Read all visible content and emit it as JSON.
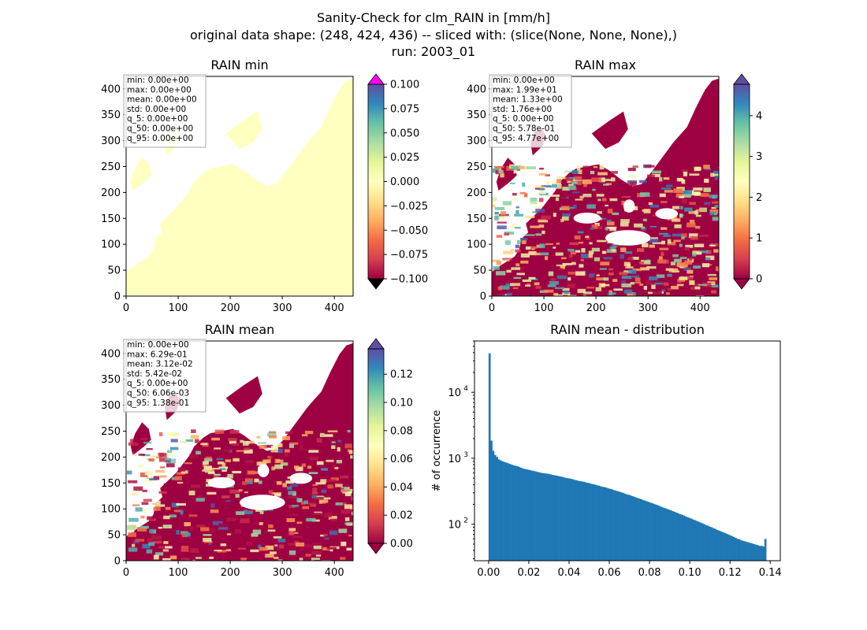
{
  "figure": {
    "suptitle_lines": [
      "Sanity-Check for clm_RAIN in [mm/h]",
      "original data shape: (248, 424, 436) -- sliced with: (slice(None, None, None),)",
      "run: 2003_01"
    ]
  },
  "colors": {
    "cmap": [
      "#9e0142",
      "#d53e4f",
      "#f46d43",
      "#fdae61",
      "#fee08b",
      "#ffffbf",
      "#e6f598",
      "#abdda4",
      "#66c2a5",
      "#3288bd",
      "#5e4fa2"
    ],
    "over_min_panel": "#ff00ff",
    "under_min_panel": "#000000",
    "hist_bar": "#1f77b4",
    "background": "#ffffff",
    "stats_border": "#aaaaaa"
  },
  "chart_data": [
    {
      "type": "heatmap",
      "title": "RAIN min",
      "x_ticks": [
        0,
        100,
        200,
        300,
        400
      ],
      "y_ticks": [
        0,
        50,
        100,
        150,
        200,
        250,
        300,
        350,
        400
      ],
      "xlim": [
        0,
        436
      ],
      "ylim": [
        0,
        424
      ],
      "colorbar_ticks": [
        "0.100",
        "0.075",
        "0.050",
        "0.025",
        "0.000",
        "−0.025",
        "−0.050",
        "−0.075",
        "−0.100"
      ],
      "colorbar_range": [
        -0.1,
        0.1
      ],
      "colorbar_extend": "both",
      "field_value": 0.0,
      "stats": [
        "min: 0.00e+00",
        "max: 0.00e+00",
        "mean: 0.00e+00",
        "std: 0.00e+00",
        "q_5: 0.00e+00",
        "q_50: 0.00e+00",
        "q_95: 0.00e+00"
      ]
    },
    {
      "type": "heatmap",
      "title": "RAIN max",
      "x_ticks": [
        0,
        100,
        200,
        300,
        400
      ],
      "y_ticks": [
        0,
        50,
        100,
        150,
        200,
        250,
        300,
        350,
        400
      ],
      "xlim": [
        0,
        436
      ],
      "ylim": [
        0,
        424
      ],
      "colorbar_ticks": [
        "4",
        "3",
        "2",
        "1",
        "0"
      ],
      "colorbar_range": [
        0,
        4.77
      ],
      "colorbar_extend": "both",
      "stats": [
        "min: 0.00e+00",
        "max: 1.99e+01",
        "mean: 1.33e+00",
        "std: 1.76e+00",
        "q_5: 0.00e+00",
        "q_50: 5.78e-01",
        "q_95: 4.77e+00"
      ]
    },
    {
      "type": "heatmap",
      "title": "RAIN mean",
      "x_ticks": [
        0,
        100,
        200,
        300,
        400
      ],
      "y_ticks": [
        0,
        50,
        100,
        150,
        200,
        250,
        300,
        350,
        400
      ],
      "xlim": [
        0,
        436
      ],
      "ylim": [
        0,
        424
      ],
      "colorbar_ticks": [
        "0.12",
        "0.10",
        "0.08",
        "0.06",
        "0.04",
        "0.02",
        "0.00"
      ],
      "colorbar_range": [
        0,
        0.138
      ],
      "colorbar_extend": "both",
      "stats": [
        "min: 0.00e+00",
        "max: 6.29e-01",
        "mean: 3.12e-02",
        "std: 5.42e-02",
        "q_5: 0.00e+00",
        "q_50: 6.06e-03",
        "q_95: 1.38e-01"
      ]
    },
    {
      "type": "bar",
      "title": "RAIN mean - distribution",
      "xlabel": "",
      "ylabel": "# of occurrence",
      "yscale": "log",
      "xlim": [
        -0.007,
        0.145
      ],
      "ylim": [
        28,
        60000
      ],
      "x_ticks": [
        "0.00",
        "0.02",
        "0.04",
        "0.06",
        "0.08",
        "0.10",
        "0.12",
        "0.14"
      ],
      "x_tick_values": [
        0,
        0.02,
        0.04,
        0.06,
        0.08,
        0.1,
        0.12,
        0.14
      ],
      "y_ticks": [
        {
          "base": "10",
          "exp": "2",
          "value": 100
        },
        {
          "base": "10",
          "exp": "3",
          "value": 1000
        },
        {
          "base": "10",
          "exp": "4",
          "value": 10000
        }
      ],
      "bin_range": [
        0.0,
        0.138
      ],
      "bin_count": 150,
      "values": [
        39000,
        1850,
        1300,
        1120,
        1050,
        960,
        930,
        900,
        880,
        860,
        840,
        820,
        800,
        780,
        770,
        760,
        740,
        720,
        700,
        690,
        680,
        670,
        660,
        650,
        640,
        630,
        620,
        610,
        600,
        595,
        590,
        585,
        580,
        570,
        560,
        555,
        545,
        540,
        530,
        525,
        515,
        505,
        500,
        495,
        490,
        480,
        470,
        465,
        455,
        450,
        445,
        440,
        430,
        425,
        420,
        410,
        405,
        400,
        390,
        385,
        375,
        370,
        365,
        360,
        350,
        345,
        340,
        330,
        325,
        318,
        312,
        305,
        300,
        292,
        285,
        280,
        275,
        268,
        262,
        255,
        250,
        245,
        240,
        232,
        228,
        222,
        218,
        212,
        208,
        202,
        198,
        193,
        188,
        183,
        178,
        175,
        170,
        166,
        162,
        158,
        154,
        150,
        146,
        142,
        139,
        135,
        131,
        128,
        125,
        122,
        118,
        115,
        112,
        109,
        106,
        103,
        100,
        97,
        95,
        92,
        90,
        87,
        85,
        82,
        80,
        78,
        76,
        74,
        72,
        70,
        68,
        66,
        64,
        62,
        60,
        59,
        57,
        56,
        55,
        54,
        53,
        52,
        51,
        50,
        49,
        48,
        47,
        47,
        46,
        60
      ]
    }
  ]
}
